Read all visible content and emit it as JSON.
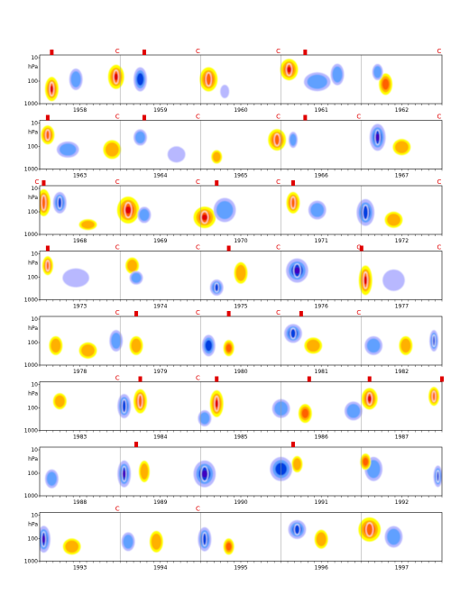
{
  "chart_data": {
    "type": "heatmap",
    "title": "",
    "y_axis": {
      "tick_labels": [
        "10",
        "hPa",
        "100",
        "1000"
      ],
      "scale": "log",
      "range_hpa": [
        1000,
        10
      ]
    },
    "colors": {
      "positive": [
        "#ffff00",
        "#ffb000",
        "#ff6000",
        "#e00000"
      ],
      "negative": [
        "#b8b8ff",
        "#60a0ff",
        "#0040e0",
        "#4000c0"
      ],
      "contour": "#ffffff",
      "marker": "#e00000",
      "gridline": "#999999"
    },
    "panels": [
      {
        "years": [
          "1958",
          "1959",
          "1960",
          "1961",
          "1962"
        ],
        "c_marks": [
          1.0,
          2.0,
          3.0,
          5.0
        ],
        "bars": [
          0.15,
          1.3,
          3.3
        ],
        "blobs": [
          {
            "x": 0.15,
            "y": 0.7,
            "w": 0.15,
            "h": 0.45,
            "s": 1
          },
          {
            "x": 0.45,
            "y": 0.5,
            "w": 0.15,
            "h": 0.4,
            "s": -0.4
          },
          {
            "x": 0.95,
            "y": 0.45,
            "w": 0.18,
            "h": 0.45,
            "s": 0.9
          },
          {
            "x": 1.25,
            "y": 0.5,
            "w": 0.15,
            "h": 0.45,
            "s": -0.7
          },
          {
            "x": 2.1,
            "y": 0.5,
            "w": 0.2,
            "h": 0.45,
            "s": 0.8
          },
          {
            "x": 2.3,
            "y": 0.75,
            "w": 0.1,
            "h": 0.25,
            "s": -0.3
          },
          {
            "x": 3.1,
            "y": 0.3,
            "w": 0.2,
            "h": 0.4,
            "s": 0.9
          },
          {
            "x": 3.45,
            "y": 0.55,
            "w": 0.3,
            "h": 0.35,
            "s": -0.6
          },
          {
            "x": 3.7,
            "y": 0.4,
            "w": 0.15,
            "h": 0.4,
            "s": -0.5
          },
          {
            "x": 4.3,
            "y": 0.6,
            "w": 0.15,
            "h": 0.4,
            "s": 0.7
          },
          {
            "x": 4.2,
            "y": 0.35,
            "w": 0.12,
            "h": 0.3,
            "s": -0.6
          }
        ]
      },
      {
        "years": [
          "1963",
          "1964",
          "1965",
          "1966",
          "1967"
        ],
        "c_marks": [
          1.0,
          2.0,
          3.0,
          4.0,
          5.0
        ],
        "bars": [
          0.1,
          1.3,
          3.3
        ],
        "blobs": [
          {
            "x": 0.1,
            "y": 0.3,
            "w": 0.15,
            "h": 0.35,
            "s": 0.85
          },
          {
            "x": 0.35,
            "y": 0.6,
            "w": 0.25,
            "h": 0.3,
            "s": -0.4
          },
          {
            "x": 0.9,
            "y": 0.6,
            "w": 0.2,
            "h": 0.35,
            "s": 0.6
          },
          {
            "x": 1.25,
            "y": 0.35,
            "w": 0.15,
            "h": 0.3,
            "s": -0.55
          },
          {
            "x": 1.7,
            "y": 0.7,
            "w": 0.2,
            "h": 0.3,
            "s": -0.3
          },
          {
            "x": 2.2,
            "y": 0.75,
            "w": 0.12,
            "h": 0.25,
            "s": 0.4
          },
          {
            "x": 2.95,
            "y": 0.4,
            "w": 0.2,
            "h": 0.4,
            "s": 0.8
          },
          {
            "x": 3.15,
            "y": 0.4,
            "w": 0.1,
            "h": 0.3,
            "s": -0.6
          },
          {
            "x": 4.2,
            "y": 0.35,
            "w": 0.18,
            "h": 0.5,
            "s": -1
          },
          {
            "x": 4.5,
            "y": 0.55,
            "w": 0.2,
            "h": 0.3,
            "s": 0.5
          }
        ]
      },
      {
        "years": [
          "1968",
          "1969",
          "1970",
          "1971",
          "1972"
        ],
        "c_marks": [
          0.0,
          1.0,
          2.0,
          3.0,
          5.0
        ],
        "bars": [
          0.05,
          2.2,
          3.15
        ],
        "blobs": [
          {
            "x": 0.05,
            "y": 0.35,
            "w": 0.15,
            "h": 0.5,
            "s": 0.8
          },
          {
            "x": 0.25,
            "y": 0.35,
            "w": 0.15,
            "h": 0.4,
            "s": -0.8
          },
          {
            "x": 0.6,
            "y": 0.8,
            "w": 0.2,
            "h": 0.2,
            "s": 0.5
          },
          {
            "x": 1.1,
            "y": 0.5,
            "w": 0.25,
            "h": 0.5,
            "s": 0.9
          },
          {
            "x": 1.3,
            "y": 0.6,
            "w": 0.15,
            "h": 0.3,
            "s": -0.4
          },
          {
            "x": 2.05,
            "y": 0.65,
            "w": 0.25,
            "h": 0.4,
            "s": 0.95
          },
          {
            "x": 2.3,
            "y": 0.5,
            "w": 0.25,
            "h": 0.45,
            "s": -0.5
          },
          {
            "x": 3.15,
            "y": 0.35,
            "w": 0.15,
            "h": 0.4,
            "s": 0.8
          },
          {
            "x": 3.45,
            "y": 0.5,
            "w": 0.2,
            "h": 0.35,
            "s": -0.5
          },
          {
            "x": 4.05,
            "y": 0.55,
            "w": 0.2,
            "h": 0.5,
            "s": -0.8
          },
          {
            "x": 4.4,
            "y": 0.7,
            "w": 0.2,
            "h": 0.3,
            "s": 0.5
          }
        ]
      },
      {
        "years": [
          "1973",
          "1974",
          "1975",
          "1976",
          "1977"
        ],
        "c_marks": [
          1.0,
          2.0,
          3.0,
          4.0,
          5.0
        ],
        "bars": [
          0.1,
          2.35,
          4.0
        ],
        "blobs": [
          {
            "x": 0.1,
            "y": 0.3,
            "w": 0.12,
            "h": 0.35,
            "s": 0.8
          },
          {
            "x": 0.45,
            "y": 0.55,
            "w": 0.3,
            "h": 0.35,
            "s": -0.35
          },
          {
            "x": 1.15,
            "y": 0.3,
            "w": 0.15,
            "h": 0.3,
            "s": 0.6
          },
          {
            "x": 1.2,
            "y": 0.55,
            "w": 0.15,
            "h": 0.25,
            "s": -0.5
          },
          {
            "x": 2.2,
            "y": 0.75,
            "w": 0.15,
            "h": 0.3,
            "s": -0.8
          },
          {
            "x": 2.5,
            "y": 0.45,
            "w": 0.15,
            "h": 0.4,
            "s": 0.5
          },
          {
            "x": 3.2,
            "y": 0.4,
            "w": 0.25,
            "h": 0.45,
            "s": -0.95
          },
          {
            "x": 4.05,
            "y": 0.6,
            "w": 0.15,
            "h": 0.55,
            "s": 1
          },
          {
            "x": 4.4,
            "y": 0.6,
            "w": 0.25,
            "h": 0.4,
            "s": -0.35
          }
        ]
      },
      {
        "years": [
          "1978",
          "1979",
          "1980",
          "1981",
          "1982"
        ],
        "c_marks": [
          1.0,
          2.0,
          3.0,
          4.0
        ],
        "bars": [
          1.2,
          2.35,
          3.25
        ],
        "blobs": [
          {
            "x": 0.2,
            "y": 0.6,
            "w": 0.15,
            "h": 0.35,
            "s": 0.6
          },
          {
            "x": 0.6,
            "y": 0.7,
            "w": 0.2,
            "h": 0.3,
            "s": 0.4
          },
          {
            "x": 0.95,
            "y": 0.5,
            "w": 0.15,
            "h": 0.4,
            "s": -0.6
          },
          {
            "x": 1.2,
            "y": 0.6,
            "w": 0.15,
            "h": 0.35,
            "s": 0.6
          },
          {
            "x": 2.1,
            "y": 0.6,
            "w": 0.15,
            "h": 0.4,
            "s": -0.7
          },
          {
            "x": 2.35,
            "y": 0.65,
            "w": 0.12,
            "h": 0.3,
            "s": 0.7
          },
          {
            "x": 3.15,
            "y": 0.35,
            "w": 0.2,
            "h": 0.35,
            "s": -0.8
          },
          {
            "x": 3.4,
            "y": 0.6,
            "w": 0.2,
            "h": 0.3,
            "s": 0.5
          },
          {
            "x": 4.15,
            "y": 0.6,
            "w": 0.2,
            "h": 0.35,
            "s": -0.5
          },
          {
            "x": 4.55,
            "y": 0.6,
            "w": 0.15,
            "h": 0.35,
            "s": 0.5
          },
          {
            "x": 4.9,
            "y": 0.5,
            "w": 0.1,
            "h": 0.4,
            "s": -0.8
          }
        ]
      },
      {
        "years": [
          "1983",
          "1984",
          "1985",
          "1986",
          "1987"
        ],
        "c_marks": [
          1.0,
          2.0
        ],
        "bars": [
          1.25,
          2.2,
          3.35,
          4.1,
          5.0
        ],
        "blobs": [
          {
            "x": 0.25,
            "y": 0.4,
            "w": 0.15,
            "h": 0.3,
            "s": 0.5
          },
          {
            "x": 1.05,
            "y": 0.5,
            "w": 0.15,
            "h": 0.45,
            "s": -0.8
          },
          {
            "x": 1.25,
            "y": 0.4,
            "w": 0.15,
            "h": 0.45,
            "s": 0.8
          },
          {
            "x": 2.05,
            "y": 0.75,
            "w": 0.15,
            "h": 0.3,
            "s": -0.6
          },
          {
            "x": 2.2,
            "y": 0.45,
            "w": 0.15,
            "h": 0.5,
            "s": 0.95
          },
          {
            "x": 3.0,
            "y": 0.55,
            "w": 0.2,
            "h": 0.35,
            "s": -0.5
          },
          {
            "x": 3.3,
            "y": 0.65,
            "w": 0.15,
            "h": 0.35,
            "s": 0.65
          },
          {
            "x": 3.9,
            "y": 0.6,
            "w": 0.2,
            "h": 0.35,
            "s": -0.6
          },
          {
            "x": 4.1,
            "y": 0.35,
            "w": 0.18,
            "h": 0.4,
            "s": 0.9
          },
          {
            "x": 4.9,
            "y": 0.3,
            "w": 0.12,
            "h": 0.35,
            "s": 0.8
          }
        ]
      },
      {
        "years": [
          "1988",
          "1989",
          "1990",
          "1991",
          "1992"
        ],
        "c_marks": [],
        "bars": [
          1.2,
          3.15
        ],
        "blobs": [
          {
            "x": 0.15,
            "y": 0.65,
            "w": 0.15,
            "h": 0.35,
            "s": -0.4
          },
          {
            "x": 1.05,
            "y": 0.55,
            "w": 0.15,
            "h": 0.5,
            "s": -1
          },
          {
            "x": 1.3,
            "y": 0.5,
            "w": 0.12,
            "h": 0.4,
            "s": 0.6
          },
          {
            "x": 2.05,
            "y": 0.55,
            "w": 0.25,
            "h": 0.5,
            "s": -1
          },
          {
            "x": 3.0,
            "y": 0.45,
            "w": 0.25,
            "h": 0.45,
            "s": -0.7
          },
          {
            "x": 3.2,
            "y": 0.35,
            "w": 0.12,
            "h": 0.3,
            "s": 0.6
          },
          {
            "x": 4.15,
            "y": 0.45,
            "w": 0.2,
            "h": 0.45,
            "s": -0.6
          },
          {
            "x": 4.05,
            "y": 0.3,
            "w": 0.12,
            "h": 0.3,
            "s": 0.7
          },
          {
            "x": 4.95,
            "y": 0.6,
            "w": 0.1,
            "h": 0.4,
            "s": -0.8
          }
        ]
      },
      {
        "years": [
          "1993",
          "1994",
          "1995",
          "1996",
          "1997"
        ],
        "c_marks": [
          1.0,
          2.0
        ],
        "bars": [],
        "blobs": [
          {
            "x": 0.05,
            "y": 0.55,
            "w": 0.15,
            "h": 0.5,
            "s": -0.9
          },
          {
            "x": 0.4,
            "y": 0.7,
            "w": 0.2,
            "h": 0.3,
            "s": 0.5
          },
          {
            "x": 1.1,
            "y": 0.6,
            "w": 0.15,
            "h": 0.35,
            "s": -0.5
          },
          {
            "x": 1.45,
            "y": 0.6,
            "w": 0.15,
            "h": 0.4,
            "s": 0.55
          },
          {
            "x": 2.05,
            "y": 0.55,
            "w": 0.15,
            "h": 0.45,
            "s": -0.8
          },
          {
            "x": 2.35,
            "y": 0.7,
            "w": 0.12,
            "h": 0.3,
            "s": 0.7
          },
          {
            "x": 3.2,
            "y": 0.35,
            "w": 0.2,
            "h": 0.35,
            "s": -0.85
          },
          {
            "x": 3.5,
            "y": 0.55,
            "w": 0.15,
            "h": 0.35,
            "s": 0.5
          },
          {
            "x": 4.1,
            "y": 0.35,
            "w": 0.25,
            "h": 0.45,
            "s": 0.85
          },
          {
            "x": 4.4,
            "y": 0.5,
            "w": 0.2,
            "h": 0.4,
            "s": -0.6
          }
        ]
      }
    ]
  }
}
